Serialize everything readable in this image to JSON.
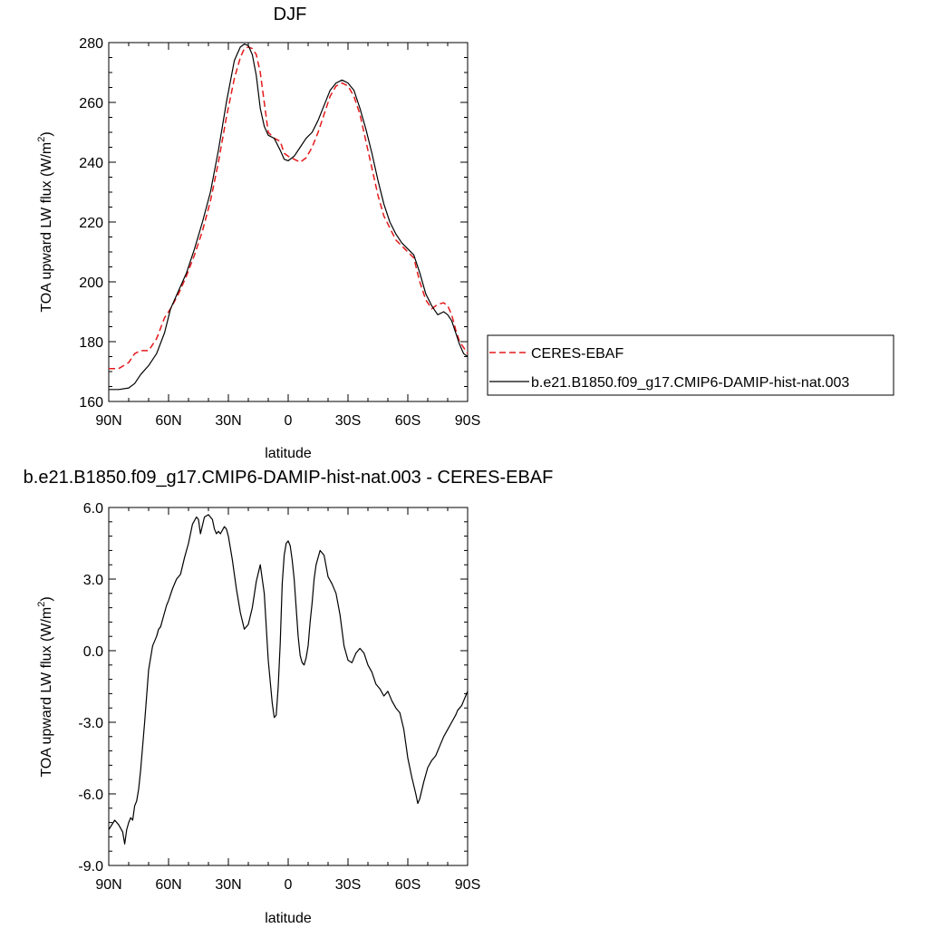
{
  "colors": {
    "model": "#000000",
    "obs": "#e41a1c",
    "frame": "#000000"
  },
  "chart_data": [
    {
      "type": "line",
      "title": "DJF",
      "xlabel": "latitude",
      "ylabel_main": "TOA upward LW flux (W/m",
      "ylabel_sup": "2",
      "ylabel_end": ")",
      "xlim": [
        -90,
        90
      ],
      "ylim": [
        160,
        280
      ],
      "xticks": [
        {
          "v": -90,
          "label": "90N"
        },
        {
          "v": -60,
          "label": "60N"
        },
        {
          "v": -30,
          "label": "30N"
        },
        {
          "v": 0,
          "label": "0"
        },
        {
          "v": 30,
          "label": "30S"
        },
        {
          "v": 60,
          "label": "60S"
        },
        {
          "v": 90,
          "label": "90S"
        }
      ],
      "yticks": [
        {
          "v": 160,
          "label": "160"
        },
        {
          "v": 180,
          "label": "180"
        },
        {
          "v": 200,
          "label": "200"
        },
        {
          "v": 220,
          "label": "220"
        },
        {
          "v": 240,
          "label": "240"
        },
        {
          "v": 260,
          "label": "260"
        },
        {
          "v": 280,
          "label": "280"
        }
      ],
      "legend_position": "right",
      "series": [
        {
          "name": "CERES-EBAF",
          "style": "dashed",
          "color": "#e41a1c",
          "x": [
            -90,
            -85,
            -80,
            -77,
            -74,
            -70,
            -66,
            -62,
            -59,
            -55,
            -51,
            -47,
            -43,
            -39,
            -35,
            -31,
            -27,
            -24,
            -22,
            -20,
            -18,
            -16,
            -14,
            -12,
            -10,
            -7,
            -4,
            -2,
            0,
            3,
            6,
            9,
            12,
            15,
            18,
            21,
            24,
            27,
            30,
            33,
            36,
            39,
            42,
            45,
            48,
            51,
            54,
            57,
            60,
            63,
            66,
            69,
            72,
            75,
            78,
            80,
            82,
            84,
            86,
            88,
            90
          ],
          "y": [
            171,
            171,
            173,
            176,
            177,
            177,
            181,
            188,
            191,
            196,
            202,
            209,
            217,
            227,
            240,
            255,
            268,
            275,
            278,
            278.5,
            278,
            276,
            270,
            260,
            250,
            248,
            247,
            243,
            242,
            241,
            240,
            241.5,
            245,
            250,
            256,
            262,
            265.5,
            266.5,
            265.5,
            262,
            256,
            247,
            238,
            229,
            222,
            218,
            214,
            212,
            210,
            208,
            200,
            194,
            191,
            192.5,
            193,
            192,
            189,
            184,
            180,
            178,
            176
          ]
        },
        {
          "name": "b.e21.B1850.f09_g17.CMIP6-DAMIP-hist-nat.003",
          "style": "solid",
          "color": "#000000",
          "x": [
            -90,
            -85,
            -80,
            -77,
            -74,
            -70,
            -66,
            -62,
            -59,
            -55,
            -51,
            -47,
            -43,
            -39,
            -35,
            -31,
            -27,
            -24,
            -22,
            -20,
            -18,
            -16,
            -14,
            -12,
            -10,
            -7,
            -4,
            -2,
            0,
            3,
            6,
            9,
            12,
            15,
            18,
            21,
            24,
            27,
            30,
            33,
            36,
            39,
            42,
            45,
            48,
            51,
            54,
            57,
            60,
            63,
            66,
            69,
            72,
            75,
            78,
            80,
            82,
            84,
            86,
            88,
            90
          ],
          "y": [
            164,
            164,
            164.5,
            166,
            169,
            172,
            176,
            183,
            191,
            197,
            203,
            211,
            220,
            230,
            244,
            260,
            274,
            278.5,
            279.5,
            279,
            276,
            269,
            258,
            252,
            249,
            248,
            244,
            241,
            240.5,
            242,
            245,
            248,
            250,
            254,
            259,
            264,
            266.5,
            267.5,
            266.5,
            264,
            258,
            251,
            243,
            234,
            226,
            220,
            216,
            213,
            211,
            209,
            203,
            196,
            192,
            189,
            190,
            189,
            187,
            183,
            179,
            176,
            175
          ]
        }
      ]
    },
    {
      "type": "line",
      "title": "b.e21.B1850.f09_g17.CMIP6-DAMIP-hist-nat.003 - CERES-EBAF",
      "xlabel": "latitude",
      "ylabel_main": "TOA upward LW flux (W/m",
      "ylabel_sup": "2",
      "ylabel_end": ")",
      "xlim": [
        -90,
        90
      ],
      "ylim": [
        -9,
        6
      ],
      "xticks": [
        {
          "v": -90,
          "label": "90N"
        },
        {
          "v": -60,
          "label": "60N"
        },
        {
          "v": -30,
          "label": "30N"
        },
        {
          "v": 0,
          "label": "0"
        },
        {
          "v": 30,
          "label": "30S"
        },
        {
          "v": 60,
          "label": "60S"
        },
        {
          "v": 90,
          "label": "90S"
        }
      ],
      "yticks": [
        {
          "v": -9,
          "label": "-9.0"
        },
        {
          "v": -6,
          "label": "-6.0"
        },
        {
          "v": -3,
          "label": "-3.0"
        },
        {
          "v": 0,
          "label": "0.0"
        },
        {
          "v": 3,
          "label": "3.0"
        },
        {
          "v": 6,
          "label": "6.0"
        }
      ],
      "series": [
        {
          "style": "solid",
          "color": "#000000",
          "x": [
            -90,
            -87,
            -85,
            -83,
            -82,
            -81,
            -80,
            -79,
            -78,
            -77,
            -76,
            -75,
            -74,
            -72,
            -70,
            -68,
            -66,
            -65,
            -64,
            -62,
            -61,
            -60,
            -58,
            -56,
            -54,
            -52,
            -50,
            -48,
            -46,
            -45,
            -44,
            -42,
            -40,
            -38,
            -37,
            -36,
            -35,
            -34,
            -32,
            -31,
            -30,
            -28,
            -26,
            -24,
            -22,
            -20,
            -18,
            -16,
            -14,
            -12,
            -10,
            -8,
            -7,
            -6,
            -5,
            -4,
            -3,
            -2,
            -1,
            0,
            1,
            2,
            3,
            4,
            5,
            6,
            7,
            8,
            9,
            10,
            11,
            12,
            13,
            14,
            16,
            18,
            20,
            22,
            24,
            26,
            28,
            30,
            32,
            34,
            36,
            38,
            40,
            42,
            44,
            46,
            48,
            50,
            52,
            54,
            56,
            58,
            60,
            62,
            64,
            65,
            66,
            68,
            70,
            72,
            74,
            76,
            78,
            80,
            82,
            84,
            85,
            86,
            87,
            88,
            89,
            90
          ],
          "y": [
            -7.5,
            -7.1,
            -7.3,
            -7.6,
            -8.1,
            -7.5,
            -7.2,
            -7.0,
            -7.1,
            -6.5,
            -6.3,
            -5.8,
            -5.0,
            -3.0,
            -0.8,
            0.2,
            0.6,
            0.9,
            1.0,
            1.6,
            1.9,
            2.1,
            2.6,
            3.0,
            3.2,
            3.9,
            4.5,
            5.3,
            5.6,
            5.5,
            4.9,
            5.6,
            5.7,
            5.5,
            5.1,
            4.9,
            5.0,
            4.9,
            5.2,
            5.1,
            4.8,
            3.8,
            2.6,
            1.6,
            0.9,
            1.1,
            1.8,
            2.9,
            3.6,
            2.4,
            -0.4,
            -2.2,
            -2.8,
            -2.7,
            -1.5,
            0.3,
            2.8,
            4.0,
            4.5,
            4.6,
            4.4,
            3.8,
            3.0,
            1.8,
            0.6,
            -0.2,
            -0.5,
            -0.6,
            -0.3,
            0.2,
            1.2,
            2.0,
            3.0,
            3.6,
            4.2,
            4.0,
            3.1,
            2.8,
            2.4,
            1.5,
            0.2,
            -0.4,
            -0.5,
            -0.1,
            0.1,
            -0.1,
            -0.6,
            -0.9,
            -1.4,
            -1.6,
            -1.9,
            -1.7,
            -2.1,
            -2.4,
            -2.6,
            -3.3,
            -4.5,
            -5.3,
            -6.0,
            -6.4,
            -6.2,
            -5.5,
            -4.9,
            -4.6,
            -4.4,
            -4.0,
            -3.6,
            -3.3,
            -3.0,
            -2.7,
            -2.5,
            -2.4,
            -2.3,
            -2.1,
            -1.9,
            -1.7
          ]
        }
      ]
    }
  ]
}
